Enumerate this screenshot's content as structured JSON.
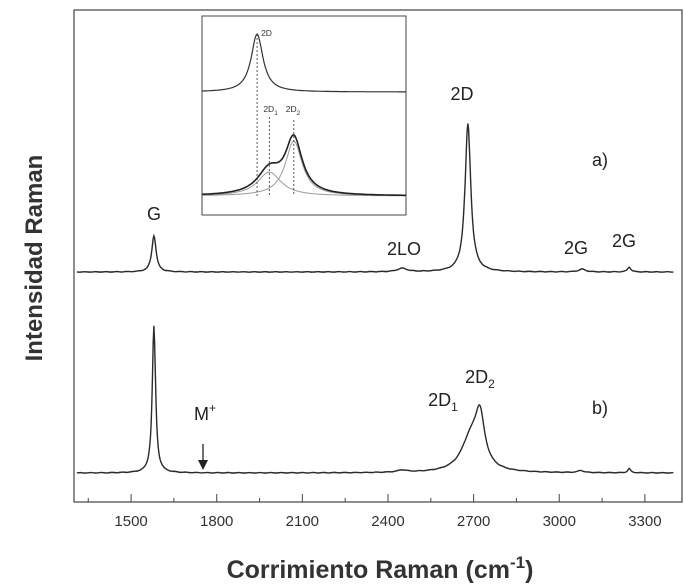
{
  "chart_data": {
    "type": "line",
    "title": "",
    "xlabel": "Corrimiento Raman (cm",
    "xlabel_sup": "-1",
    "xlabel_close": ")",
    "ylabel": "Intensidad Raman",
    "xlim": [
      1300,
      3430
    ],
    "xticks": [
      "1500",
      "1800",
      "2100",
      "2400",
      "2700",
      "3000",
      "3300"
    ],
    "xtick_values": [
      1500,
      1800,
      2100,
      2400,
      2700,
      3000,
      3300
    ],
    "y_ticks_labeled": false,
    "grid": false,
    "series": [
      {
        "name": "a)",
        "peaks": [
          {
            "x": 1580,
            "height": 0.52,
            "width": 9
          },
          {
            "x": 2450,
            "height": 0.05,
            "width": 20
          },
          {
            "x": 2680,
            "height": 2.12,
            "width": 12
          },
          {
            "x": 3080,
            "height": 0.04,
            "width": 14
          },
          {
            "x": 3245,
            "height": 0.07,
            "width": 7
          }
        ]
      },
      {
        "name": "b)",
        "peaks": [
          {
            "x": 1580,
            "height": 2.1,
            "width": 7
          },
          {
            "x": 2450,
            "height": 0.03,
            "width": 20
          },
          {
            "x": 2690,
            "height": 0.47,
            "width": 40
          },
          {
            "x": 2722,
            "height": 0.68,
            "width": 20
          },
          {
            "x": 3075,
            "height": 0.03,
            "width": 12
          },
          {
            "x": 3245,
            "height": 0.06,
            "width": 6
          }
        ]
      }
    ],
    "annotations": [
      {
        "text": "G",
        "x": 1580
      },
      {
        "text": "2LO",
        "x": 2450
      },
      {
        "text": "2D",
        "x": 2680
      },
      {
        "text": "2G",
        "x": 3075
      },
      {
        "text": "2G",
        "x": 3245
      },
      {
        "text": "a)",
        "x": 3260
      },
      {
        "text": "2D",
        "sub": "1",
        "x": 2640
      },
      {
        "text": "2D",
        "sub": "2",
        "x": 2745
      },
      {
        "text": "b)",
        "x": 3260
      },
      {
        "text": "M",
        "sup": "+",
        "x": 1750
      }
    ],
    "inset": {
      "labels": [
        {
          "text": "2D",
          "sub": ""
        },
        {
          "text": "2D",
          "sub": "1"
        },
        {
          "text": "2D",
          "sub": "2"
        }
      ]
    }
  }
}
